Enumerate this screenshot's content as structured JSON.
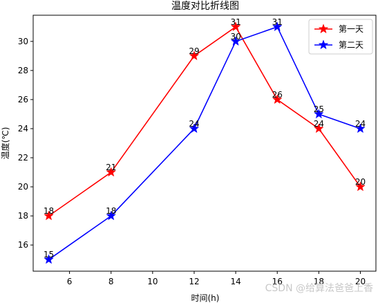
{
  "chart_data": {
    "type": "line",
    "title": "温度对比折线图",
    "xlabel": "时间(h)",
    "ylabel": "温度(℃)",
    "xlim": [
      4.25,
      20.75
    ],
    "ylim": [
      14.2,
      31.8
    ],
    "xticks": [
      6,
      8,
      10,
      12,
      14,
      16,
      18,
      20
    ],
    "yticks": [
      16,
      18,
      20,
      22,
      24,
      26,
      28,
      30
    ],
    "grid": false,
    "legend_position": "top-right",
    "marker": "star",
    "series": [
      {
        "name": "第一天",
        "color": "#ff0000",
        "x": [
          5,
          8,
          12,
          14,
          16,
          18,
          20
        ],
        "y": [
          18,
          21,
          29,
          31,
          26,
          24,
          20
        ],
        "labels": [
          "18",
          "21",
          "29",
          "31",
          "26",
          "24",
          "20"
        ]
      },
      {
        "name": "第二天",
        "color": "#0000ff",
        "x": [
          5,
          8,
          12,
          14,
          16,
          18,
          20
        ],
        "y": [
          15,
          18,
          24,
          30,
          31,
          25,
          24
        ],
        "labels": [
          "15",
          "18",
          "24",
          "30",
          "31",
          "25",
          "24"
        ]
      }
    ]
  },
  "watermark": "CSDN @给算法爸爸上香"
}
